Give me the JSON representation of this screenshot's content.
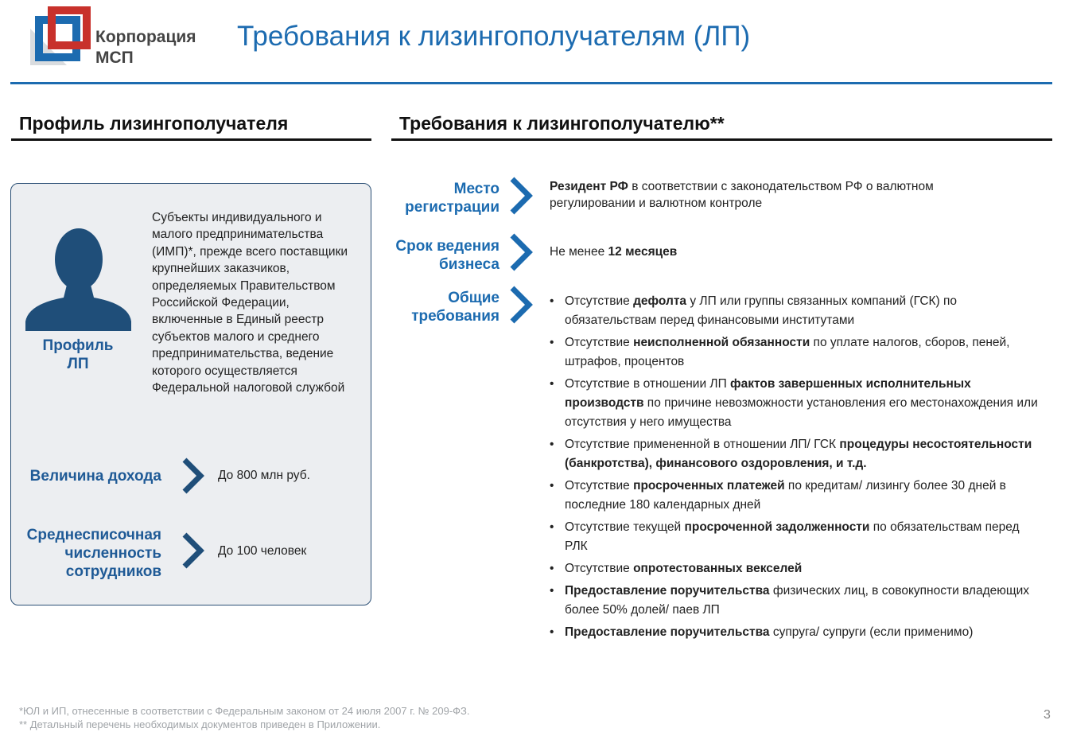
{
  "logo": {
    "text_line1": "Корпорация",
    "text_line2": "МСП",
    "colors": [
      "#c8312b",
      "#1c6bb0",
      "#d9dcdf"
    ]
  },
  "title": "Требования к лизингополучателям (ЛП)",
  "left": {
    "heading": "Профиль лизингополучателя",
    "profile_label": "Профиль ЛП",
    "description": "Субъекты индивидуального и малого предпринимательства (ИМП)*, прежде всего поставщики крупнейших заказчиков, определяемых Правительством Российской Федерации, включенные в Единый реестр субъектов малого и среднего предпринимательства, ведение которого осуществляется Федеральной налоговой службой",
    "income_label": "Величина дохода",
    "income_value": "До 800 млн руб.",
    "staff_label": "Среднесписочная численность сотрудников",
    "staff_value": "До 100 человек"
  },
  "right": {
    "heading": "Требования к лизингополучателю**",
    "registration_label": "Место регистрации",
    "registration_value": [
      {
        "t": "Резидент РФ",
        "b": true
      },
      {
        "t": " в соответствии с законодательством РФ о валютном регулировании и валютном контроле",
        "b": false
      }
    ],
    "term_label": "Срок ведения бизнеса",
    "term_value": [
      {
        "t": "Не менее ",
        "b": false
      },
      {
        "t": "12 месяцев",
        "b": true
      }
    ],
    "general_label": "Общие требования",
    "bullets": [
      [
        {
          "t": "Отсутствие ",
          "b": false
        },
        {
          "t": "дефолта",
          "b": true
        },
        {
          "t": " у ЛП или группы связанных компаний (ГСК) по обязательствам перед финансовыми институтами",
          "b": false
        }
      ],
      [
        {
          "t": "Отсутствие ",
          "b": false
        },
        {
          "t": "неисполненной обязанности",
          "b": true
        },
        {
          "t": " по уплате налогов, сборов, пеней, штрафов, процентов",
          "b": false
        }
      ],
      [
        {
          "t": "Отсутствие в отношении ЛП ",
          "b": false
        },
        {
          "t": "фактов завершенных исполнительных производств",
          "b": true
        },
        {
          "t": " по причине невозможности установления его местонахождения или отсутствия у него имущества",
          "b": false
        }
      ],
      [
        {
          "t": "Отсутствие примененной в отношении ЛП/ ГСК ",
          "b": false
        },
        {
          "t": "процедуры несостоятельности (банкротства), финансового оздоровления, и т.д.",
          "b": true
        }
      ],
      [
        {
          "t": "Отсутствие ",
          "b": false
        },
        {
          "t": "просроченных платежей",
          "b": true
        },
        {
          "t": " по кредитам/ лизингу более 30 дней в последние 180 календарных дней",
          "b": false
        }
      ],
      [
        {
          "t": "Отсутствие текущей ",
          "b": false
        },
        {
          "t": "просроченной задолженности",
          "b": true
        },
        {
          "t": " по обязательствам перед РЛК",
          "b": false
        }
      ],
      [
        {
          "t": "Отсутствие ",
          "b": false
        },
        {
          "t": "опротестованных векселей",
          "b": true
        }
      ],
      [
        {
          "t": "Предоставление поручительства",
          "b": true
        },
        {
          "t": " физических лиц, в совокупности владеющих более 50% долей/ паев ЛП",
          "b": false
        }
      ],
      [
        {
          "t": "Предоставление поручительства",
          "b": true
        },
        {
          "t": " супруга/ супруги (если применимо)",
          "b": false
        }
      ]
    ]
  },
  "footnotes": [
    "*ЮЛ и ИП, отнесенные в соответствии с Федеральным законом от 24 июля 2007 г. № 209-ФЗ.",
    "** Детальный перечень необходимых документов приведен в Приложении."
  ],
  "page_number": "3"
}
